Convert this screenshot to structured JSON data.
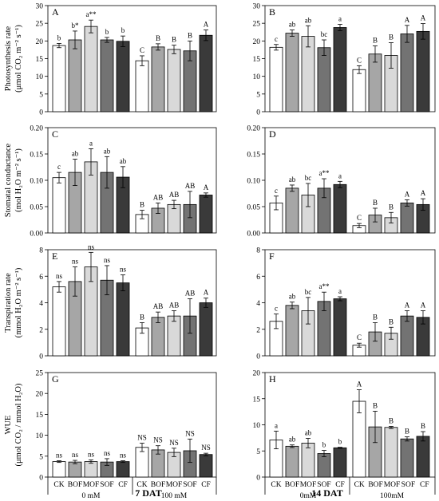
{
  "chart_data": [
    {
      "type": "bar",
      "panel": "A",
      "ylabel_lines": [
        "Photosynthesis rate",
        "(μmol CO₂ m⁻² s⁻¹)"
      ],
      "ylim": [
        0,
        30
      ],
      "yticks": [
        0,
        5,
        10,
        15,
        20,
        25,
        30
      ],
      "values": [
        18.7,
        20.3,
        24.1,
        20.3,
        19.9,
        14.4,
        18.3,
        17.6,
        17.2,
        21.6
      ],
      "errors": [
        0.6,
        2.5,
        1.8,
        0.7,
        1.5,
        1.4,
        0.9,
        1.2,
        2.8,
        1.5
      ],
      "labels": [
        "b",
        "b*",
        "a**",
        "b",
        "b",
        "C",
        "B",
        "B",
        "B",
        "A"
      ]
    },
    {
      "type": "bar",
      "panel": "B",
      "ylabel_lines": [],
      "ylim": [
        0,
        30
      ],
      "yticks": [
        0,
        5,
        10,
        15,
        20,
        25,
        30
      ],
      "values": [
        18.2,
        22.2,
        21.3,
        18.1,
        23.8,
        11.9,
        16.3,
        15.9,
        22.0,
        22.7
      ],
      "errors": [
        0.8,
        0.9,
        3.0,
        2.2,
        0.9,
        1.1,
        2.3,
        3.6,
        2.4,
        2.2
      ],
      "labels": [
        "c",
        "ab",
        "ab",
        "bc",
        "a",
        "C",
        "B",
        "B",
        "A",
        "A"
      ]
    },
    {
      "type": "bar",
      "panel": "C",
      "ylabel_lines": [
        "Stomatal conductance",
        "(mol H₂O m⁻² s⁻¹)"
      ],
      "ylim": [
        0,
        0.2
      ],
      "yticks": [
        0,
        0.05,
        0.1,
        0.15,
        0.2
      ],
      "values": [
        0.105,
        0.115,
        0.135,
        0.115,
        0.106,
        0.035,
        0.047,
        0.054,
        0.054,
        0.072
      ],
      "errors": [
        0.01,
        0.025,
        0.025,
        0.03,
        0.02,
        0.008,
        0.01,
        0.008,
        0.025,
        0.004
      ],
      "labels": [
        "c",
        "ab",
        "a",
        "ab",
        "ab",
        "B",
        "AB",
        "AB",
        "AB",
        "A"
      ]
    },
    {
      "type": "bar",
      "panel": "D",
      "ylabel_lines": [],
      "ylim": [
        0,
        0.2
      ],
      "yticks": [
        0,
        0.05,
        0.1,
        0.15,
        0.2
      ],
      "values": [
        0.057,
        0.085,
        0.072,
        0.085,
        0.092,
        0.014,
        0.034,
        0.029,
        0.057,
        0.054
      ],
      "errors": [
        0.013,
        0.006,
        0.022,
        0.018,
        0.006,
        0.004,
        0.013,
        0.01,
        0.006,
        0.011
      ],
      "labels": [
        "c",
        "ab",
        "bc",
        "a**",
        "a",
        "C",
        "B",
        "B",
        "A",
        "A"
      ]
    },
    {
      "type": "bar",
      "panel": "E",
      "ylabel_lines": [
        "Transpiration rate",
        "(mmol H₂O m⁻² s⁻¹)"
      ],
      "ylim": [
        0,
        8
      ],
      "yticks": [
        0,
        2,
        4,
        6,
        8
      ],
      "values": [
        5.2,
        5.6,
        6.7,
        5.7,
        5.5,
        2.1,
        2.9,
        3.0,
        3.0,
        4.0
      ],
      "errors": [
        0.4,
        1.1,
        1.1,
        1.1,
        0.6,
        0.4,
        0.4,
        0.4,
        1.3,
        0.35
      ],
      "labels": [
        "ns",
        "ns",
        "ns",
        "ns",
        "ns",
        "B",
        "AB",
        "AB",
        "AB",
        "A"
      ]
    },
    {
      "type": "bar",
      "panel": "F",
      "ylabel_lines": [],
      "ylim": [
        0,
        8
      ],
      "yticks": [
        0,
        2,
        4,
        6,
        8
      ],
      "values": [
        2.6,
        3.8,
        3.4,
        4.1,
        4.3,
        0.8,
        1.8,
        1.7,
        3.0,
        2.9
      ],
      "errors": [
        0.55,
        0.25,
        1.0,
        0.7,
        0.15,
        0.15,
        0.7,
        0.45,
        0.4,
        0.5
      ],
      "labels": [
        "c",
        "ab",
        "bc",
        "a**",
        "a",
        "C",
        "B",
        "B",
        "A",
        "A"
      ]
    },
    {
      "type": "bar",
      "panel": "G",
      "ylabel_lines": [
        "WUE",
        "(μmol CO₂ / mmol H₂O)"
      ],
      "ylim": [
        0,
        25
      ],
      "yticks": [
        0,
        5,
        10,
        15,
        20,
        25
      ],
      "values": [
        3.7,
        3.6,
        3.7,
        3.6,
        3.7,
        7.1,
        6.5,
        5.9,
        6.3,
        5.4
      ],
      "errors": [
        0.2,
        0.4,
        0.4,
        0.8,
        0.2,
        1.0,
        1.0,
        1.0,
        2.8,
        0.3
      ],
      "labels": [
        "ns",
        "ns",
        "ns",
        "ns",
        "ns",
        "NS",
        "NS",
        "NS",
        "NS",
        "NS"
      ]
    },
    {
      "type": "bar",
      "panel": "H",
      "ylabel_lines": [],
      "ylim": [
        0,
        20
      ],
      "yticks": [
        0,
        5,
        10,
        15,
        20
      ],
      "values": [
        7.1,
        5.9,
        6.5,
        4.5,
        5.6,
        14.5,
        9.6,
        9.5,
        7.3,
        7.8
      ],
      "errors": [
        1.7,
        0.25,
        0.9,
        0.6,
        0.1,
        2.2,
        3.0,
        0.2,
        0.4,
        0.9
      ],
      "labels": [
        "a",
        "ab",
        "ab",
        "b",
        "b",
        "A",
        "B",
        "B",
        "B",
        "B"
      ]
    }
  ],
  "categories": [
    "CK",
    "BOF",
    "MOF",
    "SOF",
    "CF"
  ],
  "bar_colors": [
    "#ffffff",
    "#a6a6a6",
    "#d9d9d9",
    "#737373",
    "#3a3a3a"
  ],
  "groups": [
    "0 mM",
    "100 mM"
  ],
  "groups_right": [
    "0mM",
    "100mM"
  ],
  "dat_labels": [
    "7 DAT",
    "14 DAT"
  ]
}
